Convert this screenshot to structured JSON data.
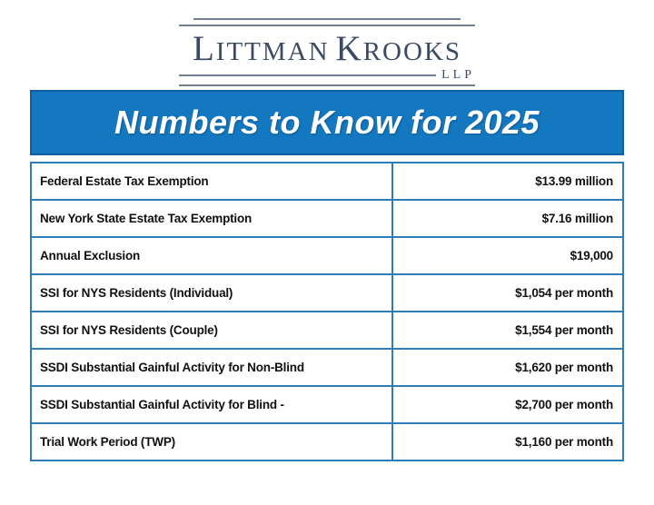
{
  "logo": {
    "name_initial_1": "L",
    "name_rest_1": "ITTMAN",
    "name_initial_2": "K",
    "name_rest_2": "ROOKS",
    "suffix": "LLP"
  },
  "banner": {
    "title": "Numbers to Know for 2025"
  },
  "table": {
    "rows": [
      {
        "label": "Federal Estate Tax Exemption",
        "value": "$13.99 million"
      },
      {
        "label": "New York State Estate Tax Exemption",
        "value": "$7.16 million"
      },
      {
        "label": "Annual Exclusion",
        "value": "$19,000"
      },
      {
        "label": "SSI for NYS Residents (Individual)",
        "value": "$1,054 per month"
      },
      {
        "label": "SSI for NYS Residents (Couple)",
        "value": "$1,554 per month"
      },
      {
        "label": "SSDI Substantial Gainful Activity for Non-Blind",
        "value": "$1,620 per month"
      },
      {
        "label": "SSDI Substantial Gainful Activity for Blind -",
        "value": "$2,700 per month"
      },
      {
        "label": "Trial Work Period (TWP)",
        "value": "$1,160 per month"
      }
    ]
  },
  "colors": {
    "banner_blue": "#1478c0",
    "banner_border": "#0d5fa4",
    "table_border": "#2e7db8",
    "logo_color": "#3a4a63",
    "text_black": "#111111"
  }
}
